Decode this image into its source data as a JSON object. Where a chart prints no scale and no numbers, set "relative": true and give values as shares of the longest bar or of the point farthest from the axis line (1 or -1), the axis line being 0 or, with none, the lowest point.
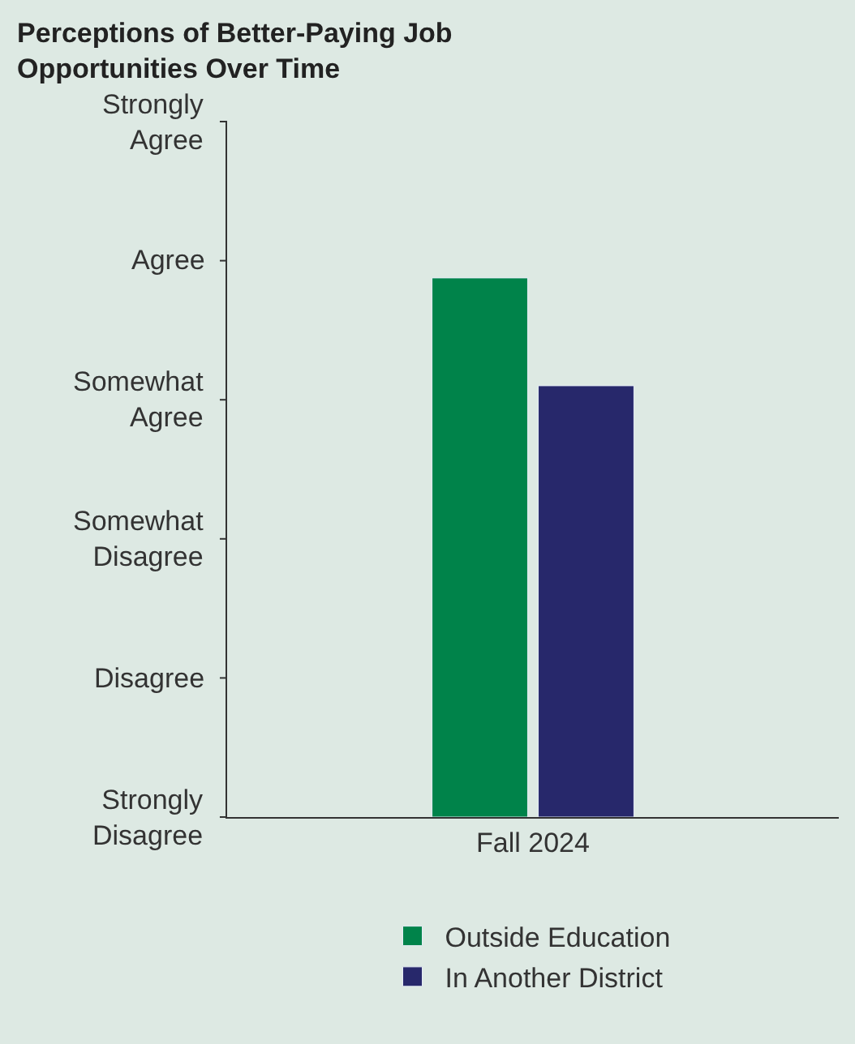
{
  "chart_data": {
    "type": "bar",
    "title": "Perceptions of Better-Paying Job\nOpportunities Over Time",
    "categories": [
      "Fall 2024"
    ],
    "relative": true,
    "series": [
      {
        "name": "Outside Education",
        "color": "#00834a",
        "values": [
          1
        ]
      },
      {
        "name": "In Another District",
        "color": "#27286b",
        "values": [
          0.8
        ]
      }
    ],
    "annotations": [
      "Strongly\nAgree",
      "Agree",
      "Somewhat\nAgree",
      "Somewhat\nDisagree",
      "Disagree",
      "Strongly\nDisagree"
    ],
    "grid": false,
    "legend": "bottom"
  }
}
